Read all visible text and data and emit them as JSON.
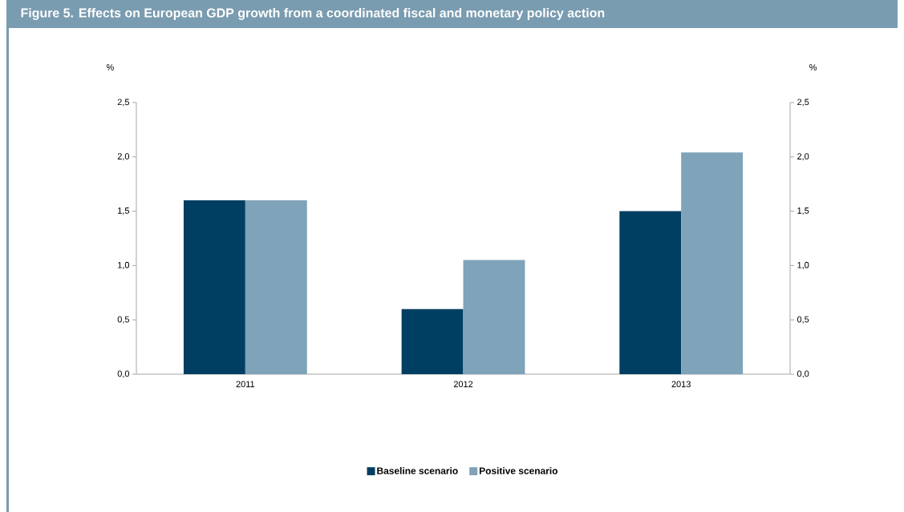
{
  "chart_data": {
    "type": "bar",
    "title": "Figure 5. Effects on European GDP growth from a coordinated fiscal and monetary policy action",
    "categories": [
      "2011",
      "2012",
      "2013"
    ],
    "series": [
      {
        "name": "Baseline scenario",
        "color": "#003f62",
        "values": [
          1.6,
          0.6,
          1.5
        ]
      },
      {
        "name": "Positive scenario",
        "color": "#7fa3b8",
        "values": [
          1.6,
          1.05,
          2.04
        ]
      }
    ],
    "ylabel": "%",
    "y2label": "%",
    "ylim": [
      0,
      2.5
    ],
    "y2lim": [
      0,
      2.5
    ],
    "yticks": [
      {
        "value": 0,
        "label": "0,0"
      },
      {
        "value": 0.5,
        "label": "0,5"
      },
      {
        "value": 1,
        "label": "1,0"
      },
      {
        "value": 1.5,
        "label": "1,5"
      },
      {
        "value": 2,
        "label": "2,0"
      },
      {
        "value": 2.5,
        "label": "2,5"
      }
    ],
    "y2ticks": [
      {
        "value": 0,
        "label": "0,0"
      },
      {
        "value": 0.5,
        "label": "0,5"
      },
      {
        "value": 1,
        "label": "1,0"
      },
      {
        "value": 1.5,
        "label": "1,5"
      },
      {
        "value": 2,
        "label": "2,0"
      },
      {
        "value": 2.5,
        "label": "2,5"
      }
    ],
    "grid": false,
    "legend": "bottom"
  }
}
